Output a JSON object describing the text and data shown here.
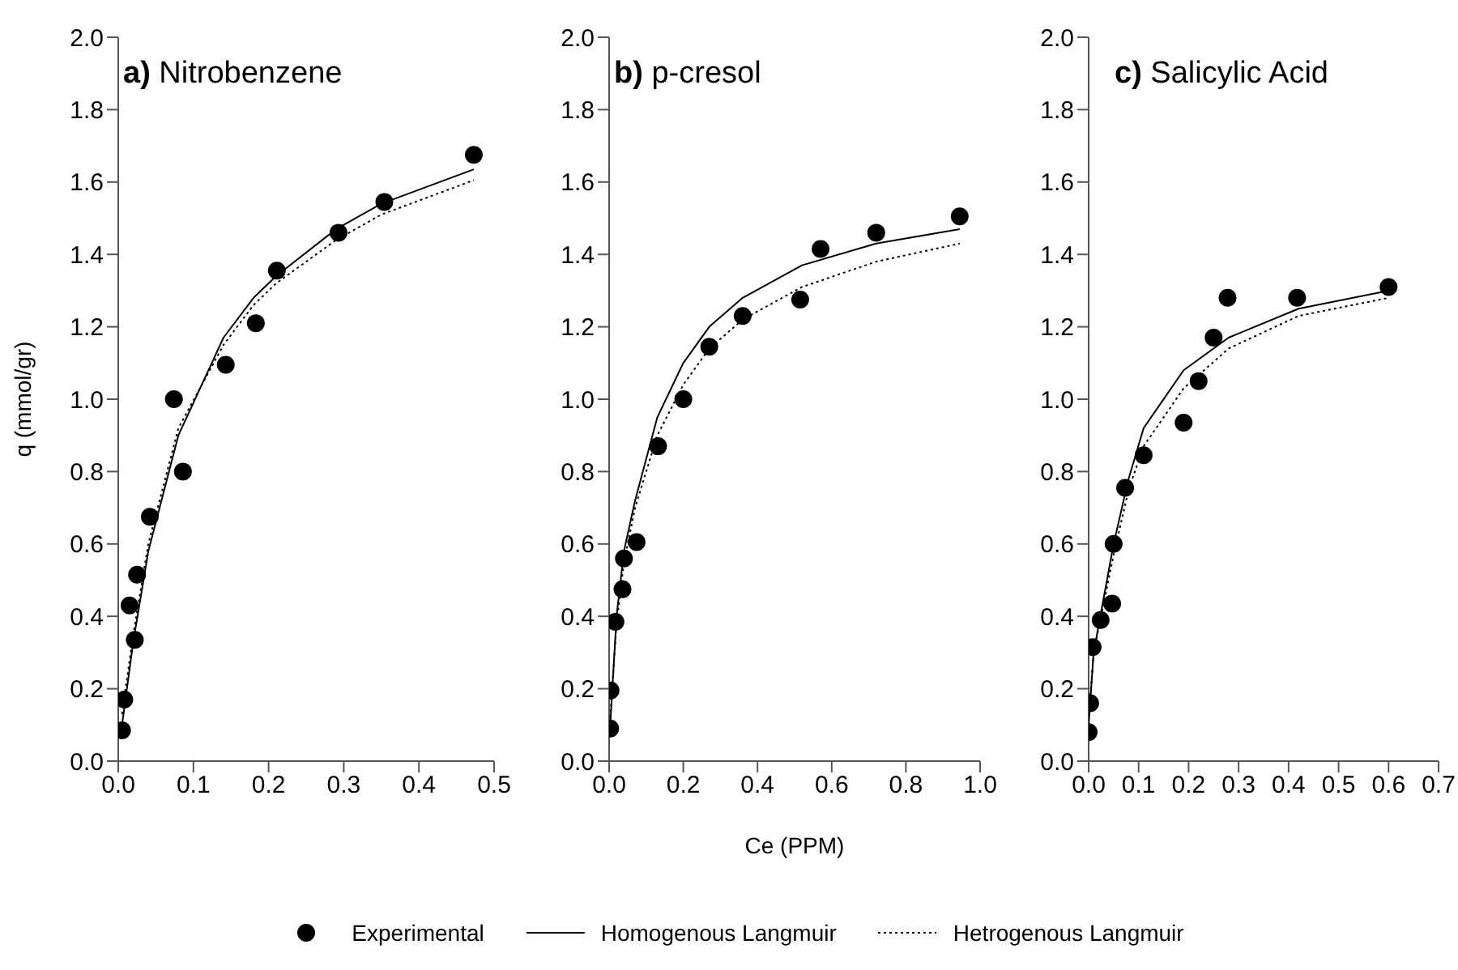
{
  "chart_data": [
    {
      "type": "scatter",
      "title": "a) Nitrobenzene",
      "ylabel": "q (mmol/gr)",
      "xlim": [
        0,
        0.5
      ],
      "xticks": [
        {
          "value": 0,
          "label": "0.0"
        },
        {
          "value": 0.1,
          "label": "0.1"
        },
        {
          "value": 0.2,
          "label": "0.2"
        },
        {
          "value": 0.3,
          "label": "0.3"
        },
        {
          "value": 0.4,
          "label": "0.4"
        },
        {
          "value": 0.5,
          "label": "0.5"
        }
      ],
      "ylim": [
        0,
        2
      ],
      "yticks": [
        {
          "value": 0,
          "label": "0.0"
        },
        {
          "value": 0.2,
          "label": "0.2"
        },
        {
          "value": 0.4,
          "label": "0.4"
        },
        {
          "value": 0.6,
          "label": "0.6"
        },
        {
          "value": 0.8,
          "label": "0.8"
        },
        {
          "value": 1,
          "label": "1.0"
        },
        {
          "value": 1.2,
          "label": "1.2"
        },
        {
          "value": 1.4,
          "label": "1.4"
        },
        {
          "value": 1.6,
          "label": "1.6"
        },
        {
          "value": 1.8,
          "label": "1.8"
        },
        {
          "value": 2,
          "label": "2.0"
        }
      ],
      "grid": false,
      "series": [
        {
          "color": "#000000",
          "marker": "circle",
          "x": [
            0.005,
            0.008,
            0.015,
            0.022,
            0.025,
            0.042,
            0.074,
            0.086,
            0.143,
            0.183,
            0.211,
            0.293,
            0.354,
            0.473
          ],
          "values": [
            0.085,
            0.17,
            0.43,
            0.335,
            0.515,
            0.675,
            1.0,
            0.8,
            1.095,
            1.21,
            1.355,
            1.46,
            1.545,
            1.675
          ]
        },
        {
          "type": "line",
          "color": "#000000",
          "marker": "none",
          "line_style": "solid",
          "x": [
            0.005,
            0.02,
            0.04,
            0.08,
            0.14,
            0.18,
            0.21,
            0.29,
            0.35,
            0.473
          ],
          "values": [
            0.1,
            0.33,
            0.58,
            0.9,
            1.17,
            1.28,
            1.34,
            1.47,
            1.54,
            1.635
          ]
        },
        {
          "type": "line",
          "color": "#000000",
          "marker": "none",
          "line_style": "dotted",
          "x": [
            0.005,
            0.02,
            0.04,
            0.08,
            0.14,
            0.18,
            0.21,
            0.29,
            0.35,
            0.473
          ],
          "values": [
            0.13,
            0.35,
            0.6,
            0.92,
            1.15,
            1.26,
            1.32,
            1.44,
            1.51,
            1.605
          ]
        }
      ]
    },
    {
      "type": "scatter",
      "title": "b) p-cresol",
      "xlabel": "Ce (PPM)",
      "legend": "bottom",
      "xlim": [
        0,
        1
      ],
      "xticks": [
        {
          "value": 0,
          "label": "0.0"
        },
        {
          "value": 0.2,
          "label": "0.2"
        },
        {
          "value": 0.4,
          "label": "0.4"
        },
        {
          "value": 0.6,
          "label": "0.6"
        },
        {
          "value": 0.8,
          "label": "0.8"
        },
        {
          "value": 1,
          "label": "1.0"
        }
      ],
      "ylim": [
        0,
        2
      ],
      "yticks": [
        {
          "value": 0,
          "label": "0.0"
        },
        {
          "value": 0.2,
          "label": "0.2"
        },
        {
          "value": 0.4,
          "label": "0.4"
        },
        {
          "value": 0.6,
          "label": "0.6"
        },
        {
          "value": 0.8,
          "label": "0.8"
        },
        {
          "value": 1,
          "label": "1.0"
        },
        {
          "value": 1.2,
          "label": "1.2"
        },
        {
          "value": 1.4,
          "label": "1.4"
        },
        {
          "value": 1.6,
          "label": "1.6"
        },
        {
          "value": 1.8,
          "label": "1.8"
        },
        {
          "value": 2,
          "label": "2.0"
        }
      ],
      "grid": false,
      "series": [
        {
          "name": "Experimental",
          "color": "#000000",
          "marker": "circle",
          "x": [
            0.003,
            0.004,
            0.017,
            0.036,
            0.04,
            0.074,
            0.132,
            0.2,
            0.27,
            0.36,
            0.515,
            0.57,
            0.72,
            0.945
          ],
          "values": [
            0.09,
            0.195,
            0.385,
            0.475,
            0.56,
            0.605,
            0.87,
            1.0,
            1.145,
            1.23,
            1.275,
            1.415,
            1.46,
            1.505
          ]
        },
        {
          "type": "line",
          "name": "Homogenous Langmuir",
          "color": "#000000",
          "marker": "none",
          "line_style": "solid",
          "x": [
            0.003,
            0.02,
            0.04,
            0.07,
            0.13,
            0.2,
            0.27,
            0.36,
            0.52,
            0.72,
            0.945
          ],
          "values": [
            0.1,
            0.4,
            0.58,
            0.72,
            0.95,
            1.1,
            1.2,
            1.28,
            1.37,
            1.43,
            1.47
          ]
        },
        {
          "type": "line",
          "name": "Hetrogenous Langmuir",
          "color": "#000000",
          "marker": "none",
          "line_style": "dotted",
          "x": [
            0.003,
            0.02,
            0.04,
            0.07,
            0.13,
            0.2,
            0.27,
            0.36,
            0.52,
            0.72,
            0.945
          ],
          "values": [
            0.12,
            0.38,
            0.55,
            0.7,
            0.9,
            1.04,
            1.14,
            1.22,
            1.31,
            1.38,
            1.43
          ]
        }
      ]
    },
    {
      "type": "scatter",
      "title": "c) Salicylic Acid",
      "xlim": [
        0,
        0.7
      ],
      "xticks": [
        {
          "value": 0,
          "label": "0.0"
        },
        {
          "value": 0.1,
          "label": "0.1"
        },
        {
          "value": 0.2,
          "label": "0.2"
        },
        {
          "value": 0.3,
          "label": "0.3"
        },
        {
          "value": 0.4,
          "label": "0.4"
        },
        {
          "value": 0.5,
          "label": "0.5"
        },
        {
          "value": 0.6,
          "label": "0.6"
        },
        {
          "value": 0.7,
          "label": "0.7"
        }
      ],
      "ylim": [
        0,
        2
      ],
      "yticks": [
        {
          "value": 0,
          "label": "0.0"
        },
        {
          "value": 0.2,
          "label": "0.2"
        },
        {
          "value": 0.4,
          "label": "0.4"
        },
        {
          "value": 0.6,
          "label": "0.6"
        },
        {
          "value": 0.8,
          "label": "0.8"
        },
        {
          "value": 1,
          "label": "1.0"
        },
        {
          "value": 1.2,
          "label": "1.2"
        },
        {
          "value": 1.4,
          "label": "1.4"
        },
        {
          "value": 1.6,
          "label": "1.6"
        },
        {
          "value": 1.8,
          "label": "1.8"
        },
        {
          "value": 2,
          "label": "2.0"
        }
      ],
      "grid": false,
      "series": [
        {
          "color": "#000000",
          "marker": "circle",
          "x": [
            0.0,
            0.003,
            0.008,
            0.024,
            0.047,
            0.05,
            0.073,
            0.11,
            0.19,
            0.22,
            0.25,
            0.278,
            0.417,
            0.6
          ],
          "values": [
            0.08,
            0.16,
            0.315,
            0.39,
            0.435,
            0.6,
            0.755,
            0.845,
            0.935,
            1.05,
            1.17,
            1.28,
            1.28,
            1.31
          ]
        },
        {
          "type": "line",
          "color": "#000000",
          "marker": "none",
          "line_style": "solid",
          "x": [
            0,
            0.01,
            0.05,
            0.08,
            0.11,
            0.19,
            0.28,
            0.42,
            0.6
          ],
          "values": [
            0.1,
            0.3,
            0.6,
            0.78,
            0.92,
            1.08,
            1.17,
            1.25,
            1.3
          ]
        },
        {
          "type": "line",
          "color": "#000000",
          "marker": "none",
          "line_style": "dotted",
          "x": [
            0,
            0.01,
            0.05,
            0.08,
            0.11,
            0.19,
            0.28,
            0.42,
            0.6
          ],
          "values": [
            0.12,
            0.3,
            0.57,
            0.75,
            0.87,
            1.03,
            1.14,
            1.23,
            1.28
          ]
        }
      ]
    }
  ]
}
